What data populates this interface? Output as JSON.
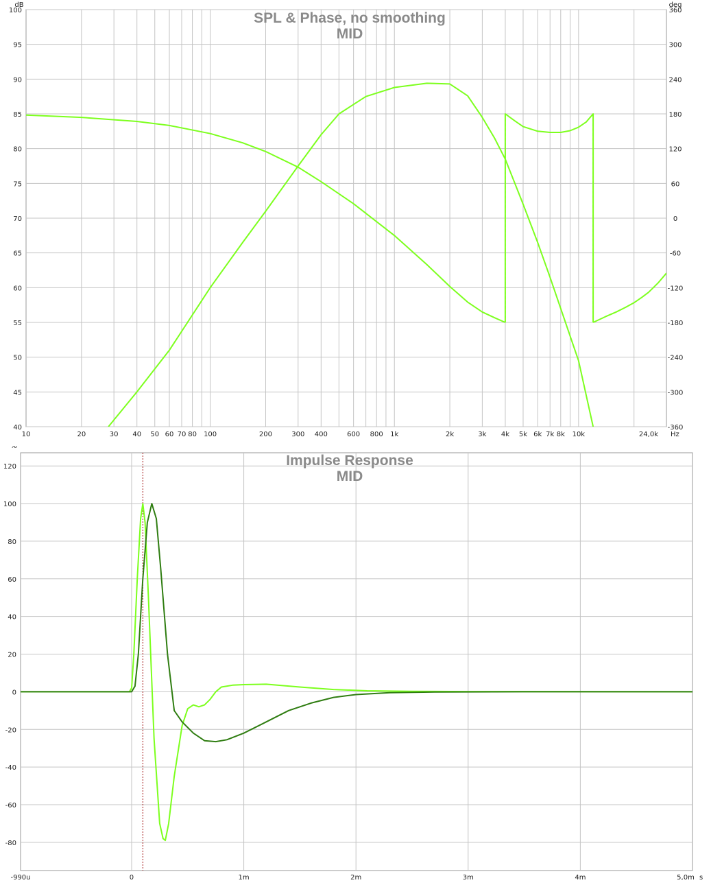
{
  "chart_data": [
    {
      "type": "line",
      "title": "SPL & Phase, no smoothing",
      "subtitle": "MID",
      "x_unit": "Hz",
      "y_left_unit": "dB",
      "y_right_unit": "deg",
      "x_scale": "log",
      "xlim": [
        10,
        30000
      ],
      "ylim_left": [
        40,
        100
      ],
      "ylim_right": [
        -360,
        360
      ],
      "grid": true,
      "x_tick_labels": [
        {
          "v": 10,
          "t": "10"
        },
        {
          "v": 20,
          "t": "20"
        },
        {
          "v": 30,
          "t": "30"
        },
        {
          "v": 40,
          "t": "40"
        },
        {
          "v": 50,
          "t": "50"
        },
        {
          "v": 60,
          "t": "60"
        },
        {
          "v": 70,
          "t": "70"
        },
        {
          "v": 80,
          "t": "80"
        },
        {
          "v": 100,
          "t": "100"
        },
        {
          "v": 200,
          "t": "200"
        },
        {
          "v": 300,
          "t": "300"
        },
        {
          "v": 400,
          "t": "400"
        },
        {
          "v": 600,
          "t": "600"
        },
        {
          "v": 800,
          "t": "800"
        },
        {
          "v": 1000,
          "t": "1k"
        },
        {
          "v": 2000,
          "t": "2k"
        },
        {
          "v": 3000,
          "t": "3k"
        },
        {
          "v": 4000,
          "t": "4k"
        },
        {
          "v": 5000,
          "t": "5k"
        },
        {
          "v": 6000,
          "t": "6k"
        },
        {
          "v": 7000,
          "t": "7k"
        },
        {
          "v": 8000,
          "t": "8k"
        },
        {
          "v": 10000,
          "t": "10k"
        },
        {
          "v": 24000,
          "t": "24,0k"
        }
      ],
      "y_left_ticks": [
        40,
        45,
        50,
        55,
        60,
        65,
        70,
        75,
        80,
        85,
        90,
        95,
        100
      ],
      "y_right_ticks": [
        -360,
        -300,
        -240,
        -180,
        -120,
        -60,
        0,
        60,
        120,
        180,
        240,
        300,
        360
      ],
      "series": [
        {
          "name": "",
          "axis": "left",
          "color": "#7dff1e",
          "x": [
            28,
            40,
            60,
            100,
            150,
            200,
            300,
            400,
            500,
            700,
            1000,
            1500,
            2000,
            2500,
            3000,
            3500,
            4000,
            5000,
            6000,
            7000,
            8000,
            10000,
            12000
          ],
          "y": [
            40,
            45,
            51,
            60,
            66.5,
            71,
            77.5,
            82,
            85,
            87.5,
            88.8,
            89.4,
            89.3,
            87.6,
            84.5,
            81.5,
            78.5,
            72,
            66.5,
            61.5,
            57,
            49.5,
            40
          ]
        },
        {
          "name": "",
          "axis": "right",
          "color": "#7dff1e",
          "segments": [
            {
              "x": [
                10,
                20,
                40,
                60,
                100,
                150,
                200,
                300,
                400,
                600,
                1000,
                1500,
                2000,
                2500,
                3000,
                3500,
                4000
              ],
              "y": [
                178,
                174,
                167,
                160,
                146,
                130,
                115,
                88,
                63,
                25,
                -30,
                -80,
                -118,
                -145,
                -162,
                -172,
                -180
              ]
            },
            {
              "x": [
                4000,
                4000,
                4500,
                5000,
                6000,
                7000,
                8000,
                9000,
                10000,
                11000,
                12000,
                12000
              ],
              "y": [
                -180,
                180,
                168,
                158,
                150,
                148,
                148,
                151,
                157,
                166,
                180,
                -180
              ]
            },
            {
              "x": [
                12000,
                14000,
                16000,
                18000,
                20000,
                22000,
                24000,
                27000,
                30000
              ],
              "y": [
                -180,
                -170,
                -162,
                -154,
                -146,
                -137,
                -128,
                -112,
                -95
              ]
            }
          ]
        }
      ]
    },
    {
      "type": "line",
      "title": "Impulse Response",
      "subtitle": "MID",
      "y_unit": "%",
      "x_unit": "s",
      "xlim": [
        -0.99,
        5.0
      ],
      "ylim": [
        -95,
        127
      ],
      "grid": true,
      "x_tick_labels": [
        {
          "v": -0.99,
          "t": "-990u"
        },
        {
          "v": 0,
          "t": "0"
        },
        {
          "v": 1,
          "t": "1m"
        },
        {
          "v": 2,
          "t": "2m"
        },
        {
          "v": 3,
          "t": "3m"
        },
        {
          "v": 4,
          "t": "4m"
        },
        {
          "v": 5,
          "t": "5,0m"
        }
      ],
      "y_ticks": [
        -80,
        -60,
        -40,
        -20,
        0,
        20,
        40,
        60,
        80,
        100,
        120
      ],
      "marker_x": 0.1,
      "series": [
        {
          "name": "",
          "color": "#7dff1e",
          "x": [
            -0.99,
            -0.02,
            0.0,
            0.02,
            0.05,
            0.08,
            0.1,
            0.12,
            0.15,
            0.2,
            0.25,
            0.28,
            0.3,
            0.33,
            0.38,
            0.45,
            0.5,
            0.55,
            0.6,
            0.65,
            0.7,
            0.75,
            0.8,
            0.9,
            1.0,
            1.2,
            1.5,
            1.8,
            2.1,
            2.5,
            3.0,
            5.0
          ],
          "y": [
            0,
            0,
            2,
            20,
            60,
            92,
            100,
            90,
            50,
            -25,
            -70,
            -78,
            -79,
            -70,
            -45,
            -18,
            -9,
            -7,
            -8,
            -7,
            -4,
            0,
            2.5,
            3.5,
            3.8,
            4,
            2.5,
            1.2,
            0.5,
            0.2,
            0.1,
            0
          ]
        },
        {
          "name": "",
          "color": "#2f7d11",
          "x": [
            -0.99,
            0.0,
            0.03,
            0.06,
            0.1,
            0.14,
            0.18,
            0.22,
            0.26,
            0.32,
            0.38,
            0.45,
            0.55,
            0.65,
            0.75,
            0.85,
            1.0,
            1.2,
            1.4,
            1.6,
            1.8,
            2.0,
            2.3,
            2.7,
            3.5,
            5.0
          ],
          "y": [
            0,
            0,
            3,
            20,
            60,
            90,
            100,
            92,
            65,
            20,
            -10,
            -16,
            -22,
            -26,
            -26.5,
            -25.5,
            -22,
            -16,
            -10,
            -6,
            -3,
            -1.5,
            -0.5,
            -0.1,
            0,
            0
          ]
        }
      ]
    }
  ]
}
